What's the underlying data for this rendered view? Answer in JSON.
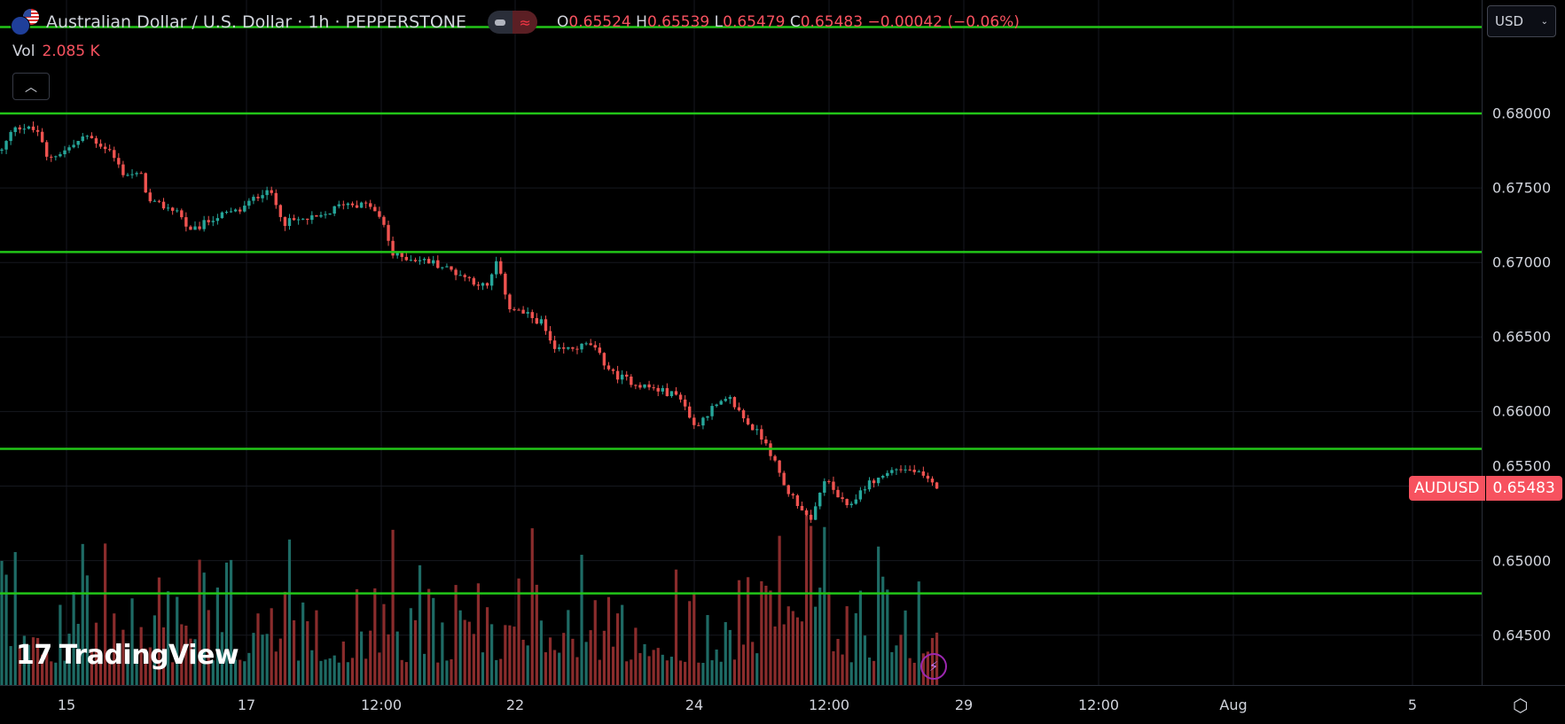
{
  "header": {
    "title": "Australian Dollar / U.S. Dollar · 1h · PEPPERSTONE",
    "ohlc": {
      "o_label": "O",
      "o": "0.65524",
      "h_label": "H",
      "h": "0.65539",
      "l_label": "L",
      "l": "0.65479",
      "c_label": "C",
      "c": "0.65483",
      "change": "−0.00042 (−0.06%)"
    },
    "vol_label": "Vol",
    "vol_value": "2.085 K",
    "collapse_icon": "chevron-up-icon",
    "currency": "USD"
  },
  "price_tag": {
    "symbol": "AUDUSD",
    "price": "0.65483"
  },
  "brand": "TradingView",
  "colors": {
    "up": "#26a69a",
    "down": "#ef5350",
    "up_volume": "#1e6b65",
    "down_volume": "#8a2c2c",
    "horizontal_lines": "#22c518",
    "tag": "#f7525f"
  },
  "chart_data": {
    "type": "candlestick",
    "symbol": "AUDUSD",
    "interval": "1h",
    "ylim": [
      0.6418,
      0.6868
    ],
    "price_ticks": [
      "0.68000",
      "0.67500",
      "0.67000",
      "0.66500",
      "0.66000",
      "0.65500",
      "0.65000",
      "0.64500"
    ],
    "time_ticks": [
      "15",
      "17",
      "12:00",
      "22",
      "24",
      "12:00",
      "29",
      "12:00",
      "Aug",
      "5"
    ],
    "horizontal_lines": [
      0.6858,
      0.68,
      0.6707,
      0.6575,
      0.6478
    ],
    "close_path": [
      [
        0,
        0.6775
      ],
      [
        3,
        0.6792
      ],
      [
        8,
        0.6788
      ],
      [
        10,
        0.677
      ],
      [
        14,
        0.6775
      ],
      [
        19,
        0.6785
      ],
      [
        24,
        0.6775
      ],
      [
        27,
        0.676
      ],
      [
        31,
        0.6758
      ],
      [
        33,
        0.674
      ],
      [
        39,
        0.6735
      ],
      [
        42,
        0.672
      ],
      [
        47,
        0.673
      ],
      [
        53,
        0.6735
      ],
      [
        59,
        0.675
      ],
      [
        63,
        0.6727
      ],
      [
        71,
        0.673
      ],
      [
        76,
        0.674
      ],
      [
        82,
        0.6738
      ],
      [
        85,
        0.6725
      ],
      [
        87,
        0.6705
      ],
      [
        96,
        0.67
      ],
      [
        102,
        0.6692
      ],
      [
        108,
        0.6683
      ],
      [
        110,
        0.67
      ],
      [
        113,
        0.667
      ],
      [
        120,
        0.666
      ],
      [
        123,
        0.664
      ],
      [
        131,
        0.6645
      ],
      [
        136,
        0.6625
      ],
      [
        142,
        0.6618
      ],
      [
        151,
        0.661
      ],
      [
        154,
        0.659
      ],
      [
        158,
        0.6602
      ],
      [
        162,
        0.6608
      ],
      [
        166,
        0.6592
      ],
      [
        170,
        0.658
      ],
      [
        174,
        0.655
      ],
      [
        178,
        0.6535
      ],
      [
        180,
        0.6525
      ],
      [
        183,
        0.6555
      ],
      [
        188,
        0.6535
      ],
      [
        192,
        0.655
      ],
      [
        199,
        0.6562
      ],
      [
        203,
        0.656
      ],
      [
        208,
        0.65483
      ]
    ],
    "volume_last": 2085
  }
}
